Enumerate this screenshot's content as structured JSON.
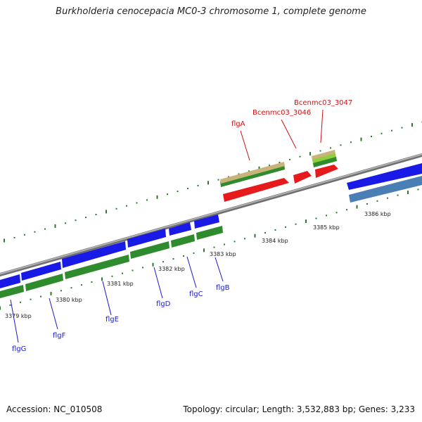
{
  "title": "Burkholderia cenocepacia MC0-3 chromosome 1, complete genome",
  "footer": {
    "accession": "Accession: NC_010508",
    "info": "Topology: circular; Length: 3,532,883 bp; Genes: 3,233"
  },
  "colors": {
    "backbone": "#8c8c8c",
    "tick": "#2a7a2a",
    "label_reverse": "#1a1acc",
    "label_forward": "#cc1111",
    "cds_blue": "#1a1ae6",
    "gene_green": "#2e8b2e",
    "cds_red": "#e61a1a",
    "gene_tan": "#c8b478",
    "gene_lightgreen": "#8fcf3f",
    "cds_steelblue": "#4a7fb5"
  },
  "kbp_labels": [
    "3379 kbp",
    "3380 kbp",
    "3381 kbp",
    "3382 kbp",
    "3383 kbp",
    "3384 kbp",
    "3385 kbp",
    "3386 kbp"
  ],
  "genes": [
    {
      "name": "flgG",
      "strand": "reverse",
      "kbp": 3378.95
    },
    {
      "name": "flgF",
      "strand": "reverse",
      "kbp": 3379.75
    },
    {
      "name": "flgE",
      "strand": "reverse",
      "kbp": 3380.8
    },
    {
      "name": "flgD",
      "strand": "reverse",
      "kbp": 3381.75
    },
    {
      "name": "flgC",
      "strand": "reverse",
      "kbp": 3382.35
    },
    {
      "name": "flgB",
      "strand": "reverse",
      "kbp": 3382.9
    },
    {
      "name": "flgA",
      "strand": "forward",
      "kbp": 3384.0
    },
    {
      "name": "Bcenmc03_3046",
      "strand": "forward",
      "kbp": 3384.7
    },
    {
      "name": "Bcenmc03_3047",
      "strand": "forward",
      "kbp": 3385.1
    }
  ]
}
